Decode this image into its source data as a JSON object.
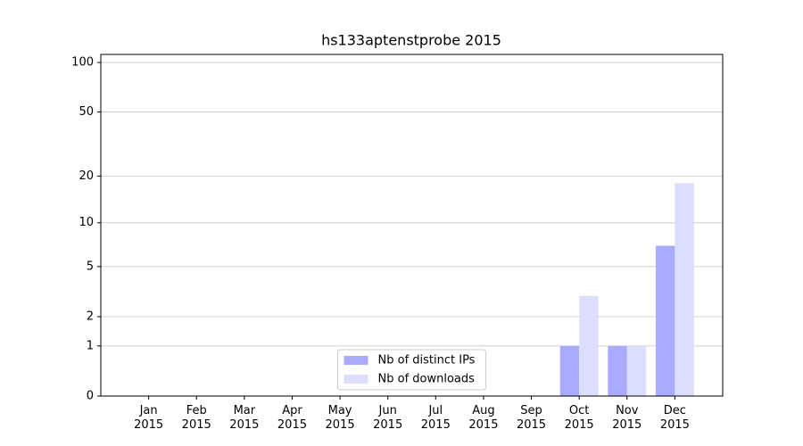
{
  "chart_data": {
    "type": "bar",
    "title": "hs133aptenstprobe 2015",
    "categories": [
      "Jan\n2015",
      "Feb\n2015",
      "Mar\n2015",
      "Apr\n2015",
      "May\n2015",
      "Jun\n2015",
      "Jul\n2015",
      "Aug\n2015",
      "Sep\n2015",
      "Oct\n2015",
      "Nov\n2015",
      "Dec\n2015"
    ],
    "series": [
      {
        "name": "Nb of distinct IPs",
        "color": "#aaaaff",
        "values": [
          0,
          0,
          0,
          0,
          0,
          0,
          0,
          0,
          0,
          1,
          1,
          7
        ]
      },
      {
        "name": "Nb of downloads",
        "color": "#ddddff",
        "values": [
          0,
          0,
          0,
          0,
          0,
          0,
          0,
          0,
          0,
          3,
          1,
          18
        ]
      }
    ],
    "yscale": "log1p",
    "ylim": [
      0,
      112
    ],
    "yticks": [
      0,
      1,
      2,
      5,
      10,
      20,
      50,
      100
    ],
    "grid": true,
    "legend": "lower center"
  }
}
